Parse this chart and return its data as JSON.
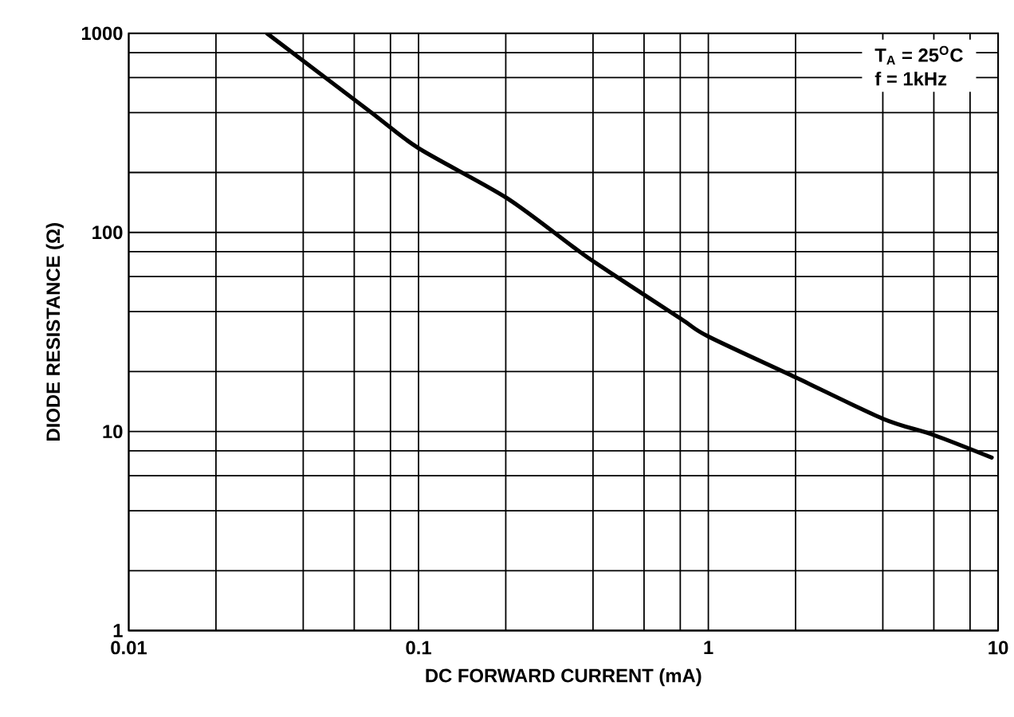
{
  "chart_data": {
    "type": "line",
    "xlabel": "DC FORWARD CURRENT (mA)",
    "ylabel": "DIODE RESISTANCE (Ω)",
    "log": "xy",
    "grid": true,
    "marker": "none",
    "line_style": "solid",
    "xlim": [
      0.01,
      10
    ],
    "ylim": [
      1,
      1000
    ],
    "xticks": [
      0.01,
      {
        "value": 0.02,
        "label": null
      },
      {
        "value": 0.04,
        "label": null
      },
      {
        "value": 0.06,
        "label": null
      },
      {
        "value": 0.08,
        "label": null
      },
      0.1,
      {
        "value": 0.2,
        "label": null
      },
      {
        "value": 0.4,
        "label": null
      },
      {
        "value": 0.6,
        "label": null
      },
      {
        "value": 0.8,
        "label": null
      },
      1,
      {
        "value": 2,
        "label": null
      },
      {
        "value": 4,
        "label": null
      },
      {
        "value": 6,
        "label": null
      },
      {
        "value": 8,
        "label": null
      },
      10
    ],
    "yticks": [
      1,
      {
        "value": 2,
        "label": null
      },
      {
        "value": 4,
        "label": null
      },
      {
        "value": 6,
        "label": null
      },
      {
        "value": 8,
        "label": null
      },
      10,
      {
        "value": 20,
        "label": null
      },
      {
        "value": 40,
        "label": null
      },
      {
        "value": 60,
        "label": null
      },
      {
        "value": 80,
        "label": null
      },
      100,
      {
        "value": 200,
        "label": null
      },
      {
        "value": 400,
        "label": null
      },
      {
        "value": 600,
        "label": null
      },
      {
        "value": 800,
        "label": null
      },
      1000
    ],
    "annotations": [
      "T$_{A}$ = 25$^{O}$C",
      "f = 1kHz"
    ],
    "series": [
      {
        "color": "#000000",
        "x": [
          0.03,
          0.068,
          0.1,
          0.2,
          0.34,
          0.41,
          0.8,
          1,
          2,
          4,
          6,
          9.5
        ],
        "values": [
          1000,
          405,
          265,
          150,
          85,
          70,
          37,
          30,
          18.7,
          11.6,
          9.6,
          7.4
        ]
      }
    ]
  }
}
